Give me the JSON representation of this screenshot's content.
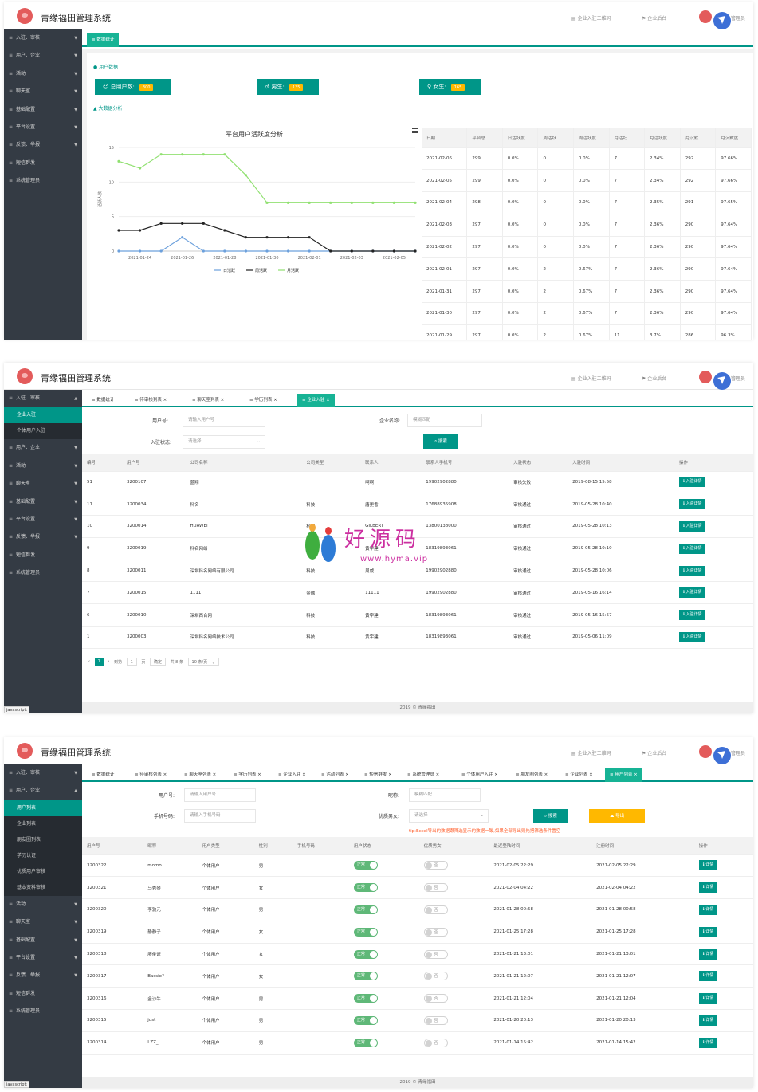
{
  "app": {
    "brand": "青缘福田管理系统",
    "top_links": [
      "企业入驻二维码",
      "企业后台"
    ],
    "admin_label": "管理员",
    "footer": "2019 © 青缘福田",
    "status_text": "javascript:"
  },
  "sidebar_menu": [
    "入驻、审核",
    "用户、企业",
    "活动",
    "聊天室",
    "基础配置",
    "平台设置",
    "反馈、举报",
    "短信群发",
    "系统管理员"
  ],
  "shot1": {
    "tab": "数据统计",
    "user_data_title": "用户数据",
    "stats": [
      {
        "label": "总用户数:",
        "value": "300"
      },
      {
        "label": "男生:",
        "value": "135"
      },
      {
        "label": "女生:",
        "value": "165"
      }
    ],
    "analysis_title": "大数据分析",
    "chart_data": {
      "type": "line",
      "title": "平台用户活跃度分析",
      "ylabel": "活跃人数",
      "x": [
        "2021-01-23",
        "2021-01-24",
        "2021-01-25",
        "2021-01-26",
        "2021-01-27",
        "2021-01-28",
        "2021-01-29",
        "2021-01-30",
        "2021-01-31",
        "2021-02-01",
        "2021-02-02",
        "2021-02-03",
        "2021-02-04",
        "2021-02-05",
        "2021-02-06"
      ],
      "x_tick_labels": [
        "2021-01-24",
        "2021-01-26",
        "2021-01-28",
        "2021-01-30",
        "2021-02-01",
        "2021-02-03",
        "2021-02-05"
      ],
      "y_ticks": [
        0,
        5,
        10,
        15
      ],
      "ylim": [
        0,
        15
      ],
      "legend_position": "bottom",
      "series": [
        {
          "name": "日活跃",
          "color": "#6ca0dc",
          "values": [
            0,
            0,
            0,
            2,
            0,
            0,
            0,
            0,
            0,
            0,
            0,
            0,
            0,
            0,
            0
          ]
        },
        {
          "name": "周活跃",
          "color": "#222222",
          "values": [
            3,
            3,
            4,
            4,
            4,
            3,
            2,
            2,
            2,
            2,
            0,
            0,
            0,
            0,
            0
          ]
        },
        {
          "name": "月活跃",
          "color": "#90e070",
          "values": [
            13,
            12,
            14,
            14,
            14,
            14,
            11,
            7,
            7,
            7,
            7,
            7,
            7,
            7,
            7
          ]
        }
      ]
    },
    "table_headers": [
      "日期",
      "平台总...",
      "日活跃度",
      "周活跃...",
      "周活跃度",
      "月活跃...",
      "月活跃度",
      "月沉默...",
      "月沉默度"
    ],
    "table_rows": [
      [
        "2021-02-06",
        "299",
        "0.0%",
        "0",
        "0.0%",
        "7",
        "2.34%",
        "292",
        "97.66%"
      ],
      [
        "2021-02-05",
        "299",
        "0.0%",
        "0",
        "0.0%",
        "7",
        "2.34%",
        "292",
        "97.66%"
      ],
      [
        "2021-02-04",
        "298",
        "0.0%",
        "0",
        "0.0%",
        "7",
        "2.35%",
        "291",
        "97.65%"
      ],
      [
        "2021-02-03",
        "297",
        "0.0%",
        "0",
        "0.0%",
        "7",
        "2.36%",
        "290",
        "97.64%"
      ],
      [
        "2021-02-02",
        "297",
        "0.0%",
        "0",
        "0.0%",
        "7",
        "2.36%",
        "290",
        "97.64%"
      ],
      [
        "2021-02-01",
        "297",
        "0.0%",
        "2",
        "0.67%",
        "7",
        "2.36%",
        "290",
        "97.64%"
      ],
      [
        "2021-01-31",
        "297",
        "0.0%",
        "2",
        "0.67%",
        "7",
        "2.36%",
        "290",
        "97.64%"
      ],
      [
        "2021-01-30",
        "297",
        "0.0%",
        "2",
        "0.67%",
        "7",
        "2.36%",
        "290",
        "97.64%"
      ],
      [
        "2021-01-29",
        "297",
        "0.0%",
        "2",
        "0.67%",
        "11",
        "3.7%",
        "286",
        "96.3%"
      ]
    ]
  },
  "shot2": {
    "submenu": [
      "企业入驻",
      "个体用户入驻"
    ],
    "tabs": [
      "数据统计",
      "待审核列表",
      "聊天室列表",
      "学历列表",
      "企业入驻"
    ],
    "form": {
      "user_label": "用户号:",
      "user_placeholder": "请输入用户号",
      "company_label": "企业名称:",
      "company_placeholder": "模糊匹配",
      "status_label": "入驻状态:",
      "status_placeholder": "请选择",
      "search": "搜索"
    },
    "table_headers": [
      "编号",
      "用户号",
      "公司名称",
      "公司类型",
      "联系人",
      "联系人手机号",
      "入驻状态",
      "入驻时间",
      "操作"
    ],
    "action_label": "入驻详情",
    "table_rows": [
      [
        "51",
        "3200107",
        "蓝翔",
        "",
        "啊啊",
        "19902902880",
        "审核失败",
        "2019-08-15 15:58"
      ],
      [
        "11",
        "3200034",
        "科名",
        "科技",
        "唐更香",
        "17688935908",
        "审核通过",
        "2019-05-28 10:40"
      ],
      [
        "10",
        "3200014",
        "HUAWEI",
        "科技",
        "GILBERT",
        "13800138000",
        "审核通过",
        "2019-05-28 10:13"
      ],
      [
        "9",
        "3200019",
        "科名网络",
        "科技",
        "黄宇建",
        "18319893061",
        "审核通过",
        "2019-05-28 10:10"
      ],
      [
        "8",
        "3200011",
        "深圳科名网络有限公司",
        "科技",
        "周威",
        "19902902880",
        "审核通过",
        "2019-05-28 10:06"
      ],
      [
        "7",
        "3200015",
        "1111",
        "金融",
        "11111",
        "19902902880",
        "审核通过",
        "2019-05-16 16:14"
      ],
      [
        "6",
        "3200010",
        "深圳西合网",
        "科技",
        "黄宇建",
        "18319893061",
        "审核通过",
        "2019-05-16 15:57"
      ],
      [
        "1",
        "3200003",
        "深圳科名网络技术公司",
        "科技",
        "黄宇建",
        "18319893061",
        "审核通过",
        "2019-05-06 11:09"
      ]
    ],
    "pager": {
      "current": "1",
      "goto_label": "到第",
      "page_input": "1",
      "page_unit": "页",
      "confirm": "确定",
      "total": "共 8 条",
      "per_page": "10 条/页"
    },
    "watermark": {
      "text": "好源码",
      "url": "www.hyma.vip"
    }
  },
  "shot3": {
    "submenu": [
      "用户列表",
      "企业列表",
      "朋友圈列表",
      "学历认证",
      "优质用户审核",
      "基本资料审核"
    ],
    "tabs": [
      "数据统计",
      "待审核列表",
      "聊天室列表",
      "学历列表",
      "企业入驻",
      "活动列表",
      "短信群发",
      "系统管理员",
      "个体用户入驻",
      "朋友圈列表",
      "企业列表",
      "用户列表"
    ],
    "form": {
      "user_label": "用户号:",
      "user_placeholder": "请输入用户号",
      "nick_label": "昵称:",
      "nick_placeholder": "模糊匹配",
      "phone_label": "手机号码:",
      "phone_placeholder": "请输入手机号码",
      "quality_label": "优质男女:",
      "quality_placeholder": "请选择",
      "search": "搜索",
      "export": "导出",
      "tip": "tip:Excel导出的数据跟筛选显示的数据一致,如果全部导出则先把筛选条件置空"
    },
    "table_headers": [
      "用户号",
      "昵称",
      "用户类型",
      "性别",
      "手机号码",
      "用户状态",
      "优质男女",
      "最近登陆时间",
      "注册时间",
      "操作"
    ],
    "status_on": "正常",
    "quality_off": "否",
    "action_label": "详情",
    "table_rows": [
      [
        "3200322",
        "momo",
        "个体用户",
        "男",
        "",
        "2021-02-05 22:29",
        "2021-02-05 22:29"
      ],
      [
        "3200321",
        "马秀琴",
        "个体用户",
        "女",
        "",
        "2021-02-04 04:22",
        "2021-02-04 04:22"
      ],
      [
        "3200320",
        "李驰元",
        "个体用户",
        "男",
        "",
        "2021-01-28 00:58",
        "2021-01-28 00:58"
      ],
      [
        "3200319",
        "静静子",
        "个体用户",
        "女",
        "",
        "2021-01-25 17:28",
        "2021-01-25 17:28"
      ],
      [
        "3200318",
        "廖俊谚",
        "个体用户",
        "女",
        "",
        "2021-01-21 13:01",
        "2021-01-21 13:01"
      ],
      [
        "3200317",
        "Bassie?",
        "个体用户",
        "女",
        "",
        "2021-01-21 12:07",
        "2021-01-21 12:07"
      ],
      [
        "3200316",
        "金沙牛",
        "个体用户",
        "男",
        "",
        "2021-01-21 12:04",
        "2021-01-21 12:04"
      ],
      [
        "3200315",
        "just",
        "个体用户",
        "男",
        "",
        "2021-01-20 20:13",
        "2021-01-20 20:13"
      ],
      [
        "3200314",
        "LZZ_",
        "个体用户",
        "男",
        "",
        "2021-01-14 15:42",
        "2021-01-14 15:42"
      ]
    ]
  }
}
